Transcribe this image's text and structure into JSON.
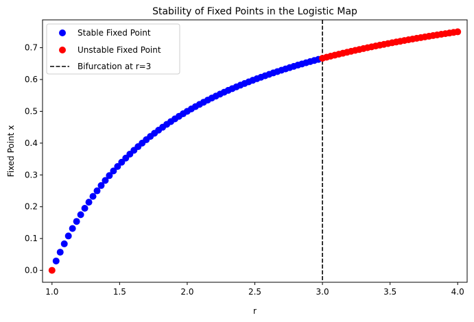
{
  "chart_data": {
    "type": "scatter",
    "title": "Stability of Fixed Points in the Logistic Map",
    "xlabel": "r",
    "ylabel": "Fixed Point x",
    "xlim": [
      0.93,
      4.07
    ],
    "ylim": [
      -0.0375,
      0.7875
    ],
    "xticks": [
      "1.0",
      "1.5",
      "2.0",
      "2.5",
      "3.0",
      "3.5",
      "4.0"
    ],
    "yticks": [
      "0.0",
      "0.1",
      "0.2",
      "0.3",
      "0.4",
      "0.5",
      "0.6",
      "0.7"
    ],
    "grid": false,
    "legend_position": "upper-left",
    "formula": "x = 1 - 1/r",
    "series": [
      {
        "name": "Stable Fixed Point",
        "color": "#0000ff",
        "x": [
          1.0303,
          1.0606,
          1.0909,
          1.1212,
          1.1515,
          1.1818,
          1.2121,
          1.2424,
          1.2727,
          1.303,
          1.3333,
          1.3636,
          1.3939,
          1.4242,
          1.4545,
          1.4848,
          1.5152,
          1.5455,
          1.5758,
          1.6061,
          1.6364,
          1.6667,
          1.697,
          1.7273,
          1.7576,
          1.7879,
          1.8182,
          1.8485,
          1.8788,
          1.9091,
          1.9394,
          1.9697,
          2.0,
          2.0303,
          2.0606,
          2.0909,
          2.1212,
          2.1515,
          2.1818,
          2.2121,
          2.2424,
          2.2727,
          2.303,
          2.3333,
          2.3636,
          2.3939,
          2.4242,
          2.4545,
          2.4848,
          2.5152,
          2.5455,
          2.5758,
          2.6061,
          2.6364,
          2.6667,
          2.697,
          2.7273,
          2.7576,
          2.7879,
          2.8182,
          2.8485,
          2.8788,
          2.9091,
          2.9394,
          2.9697
        ],
        "y": [
          0.0294,
          0.0571,
          0.0833,
          0.1081,
          0.1316,
          0.1538,
          0.175,
          0.1951,
          0.2143,
          0.2326,
          0.25,
          0.2667,
          0.2826,
          0.2979,
          0.3125,
          0.3265,
          0.34,
          0.3529,
          0.3654,
          0.3774,
          0.3889,
          0.4,
          0.4107,
          0.4211,
          0.431,
          0.4407,
          0.45,
          0.459,
          0.4677,
          0.4762,
          0.4844,
          0.4923,
          0.5,
          0.5075,
          0.5147,
          0.5217,
          0.5286,
          0.5352,
          0.5417,
          0.5479,
          0.554,
          0.56,
          0.5658,
          0.5714,
          0.5769,
          0.5823,
          0.5875,
          0.5926,
          0.5976,
          0.6024,
          0.6071,
          0.6118,
          0.6163,
          0.6207,
          0.625,
          0.6292,
          0.6333,
          0.6374,
          0.6413,
          0.6452,
          0.6489,
          0.6526,
          0.6563,
          0.6598,
          0.6633
        ]
      },
      {
        "name": "Unstable Fixed Point",
        "color": "#ff0000",
        "x": [
          1.0,
          3.0,
          3.0303,
          3.0606,
          3.0909,
          3.1212,
          3.1515,
          3.1818,
          3.2121,
          3.2424,
          3.2727,
          3.303,
          3.3333,
          3.3636,
          3.3939,
          3.4242,
          3.4545,
          3.4848,
          3.5152,
          3.5455,
          3.5758,
          3.6061,
          3.6364,
          3.6667,
          3.697,
          3.7273,
          3.7576,
          3.7879,
          3.8182,
          3.8485,
          3.8788,
          3.9091,
          3.9394,
          3.9697,
          4.0
        ],
        "y": [
          0.0,
          0.6667,
          0.67,
          0.6733,
          0.6765,
          0.6796,
          0.6827,
          0.6857,
          0.6887,
          0.6916,
          0.6944,
          0.6972,
          0.7,
          0.7027,
          0.7054,
          0.708,
          0.7105,
          0.713,
          0.7155,
          0.7179,
          0.7203,
          0.7227,
          0.725,
          0.7273,
          0.7295,
          0.7317,
          0.7339,
          0.736,
          0.7381,
          0.7402,
          0.7422,
          0.7442,
          0.7462,
          0.7481,
          0.75
        ]
      }
    ],
    "vline": {
      "x": 3.0,
      "label": "Bifurcation at r=3",
      "color": "#000000",
      "style": "dashed"
    },
    "legend": [
      "Stable Fixed Point",
      "Unstable Fixed Point",
      "Bifurcation at r=3"
    ]
  }
}
